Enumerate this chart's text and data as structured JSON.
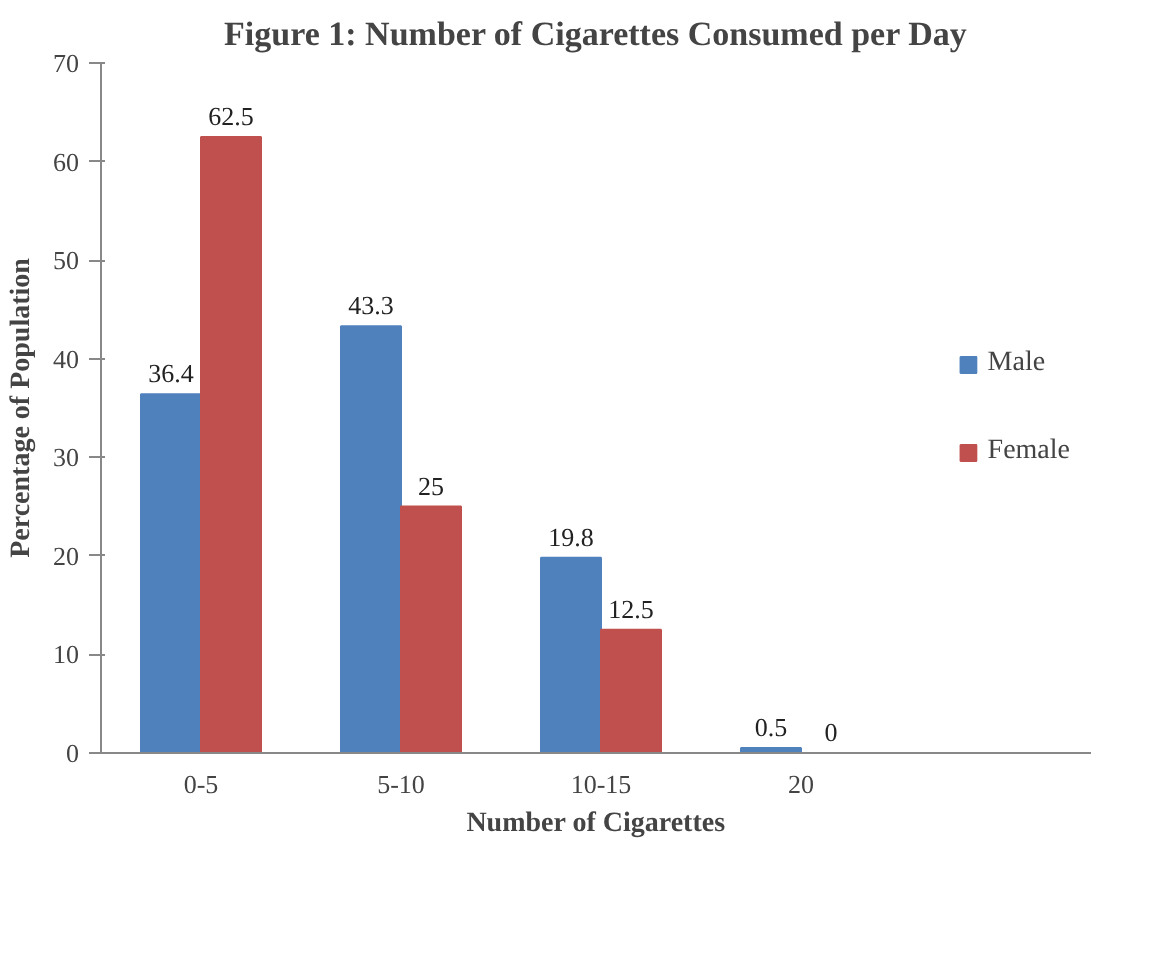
{
  "chart_data": {
    "type": "bar",
    "title": "Figure 1: Number of Cigarettes Consumed per Day",
    "xlabel": "Number of Cigarettes",
    "ylabel": "Percentage of Population",
    "categories": [
      "0-5",
      "5-10",
      "10-15",
      "20"
    ],
    "series": [
      {
        "name": "Male",
        "color": "#4f81bd",
        "values": [
          36.4,
          43.3,
          19.8,
          0.5
        ]
      },
      {
        "name": "Female",
        "color": "#c0504d",
        "values": [
          62.5,
          25,
          12.5,
          0
        ]
      }
    ],
    "ylim": [
      0,
      70
    ],
    "yticks": [
      0,
      10,
      20,
      30,
      40,
      50,
      60,
      70
    ],
    "data_labels": true,
    "grid": false,
    "legend": "right"
  }
}
